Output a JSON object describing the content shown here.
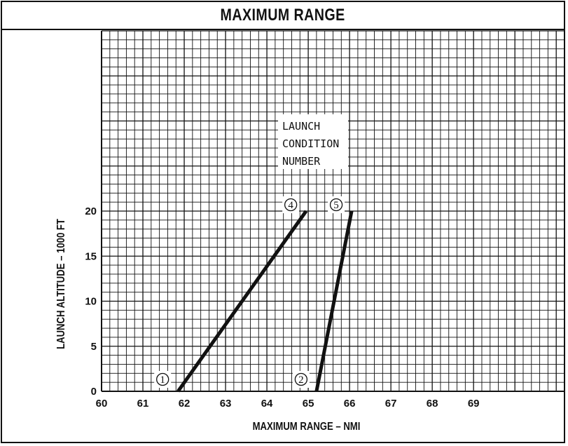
{
  "chart_data": {
    "type": "line",
    "title": "MAXIMUM RANGE",
    "xlabel": "MAXIMUM RANGE – NMI",
    "ylabel": "LAUNCH ALTITUDE – 1000 FT",
    "xlim": [
      60,
      71.2
    ],
    "ylim": [
      0,
      40
    ],
    "x_ticks": [
      "60",
      "61",
      "62",
      "63",
      "64",
      "65",
      "66",
      "67",
      "68",
      "69"
    ],
    "y_ticks": [
      "0",
      "5",
      "10",
      "15",
      "20"
    ],
    "grid": true,
    "annotation": {
      "lines": [
        "LAUNCH",
        "CONDITION",
        "NUMBER"
      ]
    },
    "series": [
      {
        "name": "",
        "start_marker": "1",
        "end_marker": "4",
        "points": [
          {
            "x": 61.85,
            "y": 0
          },
          {
            "x": 64.95,
            "y": 20
          }
        ]
      },
      {
        "name": "",
        "start_marker": "2",
        "end_marker": "5",
        "points": [
          {
            "x": 65.2,
            "y": 0
          },
          {
            "x": 66.05,
            "y": 20
          }
        ]
      }
    ],
    "line_color": "#111111",
    "grid_color": "#111111"
  }
}
